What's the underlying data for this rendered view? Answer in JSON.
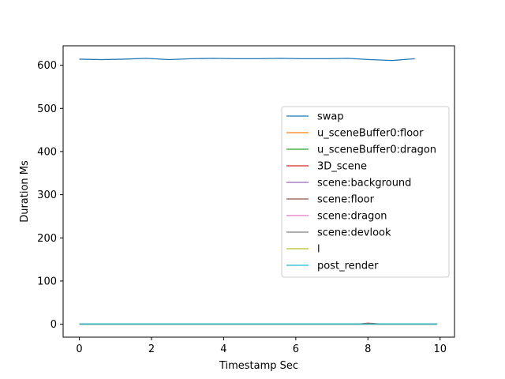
{
  "chart_data": {
    "type": "line",
    "title": "",
    "xlabel": "Timestamp Sec",
    "ylabel": "Duration Ms",
    "xlim": [
      -0.45,
      10.4
    ],
    "ylim": [
      -30,
      645
    ],
    "xticks": [
      0,
      2,
      4,
      6,
      8,
      10
    ],
    "yticks": [
      0,
      100,
      200,
      300,
      400,
      500,
      600
    ],
    "grid": false,
    "legend_position": "center-right",
    "series": [
      {
        "name": "swap",
        "color": "#1f77b4",
        "x": [
          0.0,
          0.62,
          1.24,
          1.86,
          2.48,
          3.1,
          3.72,
          4.34,
          4.96,
          5.58,
          6.2,
          6.82,
          7.44,
          8.06,
          8.68,
          9.3
        ],
        "y": [
          614,
          613,
          614,
          616,
          613,
          615,
          616,
          615,
          615,
          616,
          615,
          615,
          616,
          613,
          611,
          615
        ]
      },
      {
        "name": "u_sceneBuffer0:floor",
        "color": "#ff7f0e",
        "x": [
          0.0,
          1.0,
          2.0,
          3.0,
          4.0,
          5.0,
          6.0,
          7.0,
          7.8,
          8.0,
          8.3,
          9.0,
          9.92
        ],
        "y": [
          0.3,
          0.3,
          0.3,
          0.3,
          0.3,
          0.3,
          0.3,
          0.3,
          0.3,
          0.5,
          0.3,
          0.3,
          0.3
        ]
      },
      {
        "name": "u_sceneBuffer0:dragon",
        "color": "#2ca02c",
        "x": [
          0.0,
          1.0,
          2.0,
          3.0,
          4.0,
          5.0,
          6.0,
          7.0,
          8.0,
          9.0,
          9.92
        ],
        "y": [
          0.4,
          0.4,
          0.4,
          0.4,
          0.4,
          0.4,
          0.4,
          0.4,
          0.4,
          0.4,
          0.4
        ]
      },
      {
        "name": "3D_scene",
        "color": "#d62728",
        "x": [
          0.0,
          1.0,
          2.0,
          3.0,
          4.0,
          5.0,
          6.0,
          7.0,
          7.8,
          8.0,
          8.3,
          9.0,
          9.92
        ],
        "y": [
          0.9,
          0.9,
          0.9,
          0.9,
          0.9,
          0.9,
          0.9,
          0.9,
          0.9,
          2.5,
          0.9,
          0.9,
          0.9
        ]
      },
      {
        "name": "scene:background",
        "color": "#9467bd",
        "x": [
          0.0,
          1.0,
          2.0,
          3.0,
          4.0,
          5.0,
          6.0,
          7.0,
          8.0,
          9.0,
          9.92
        ],
        "y": [
          0.1,
          0.1,
          0.1,
          0.1,
          0.1,
          0.1,
          0.1,
          0.1,
          0.1,
          0.1,
          0.1
        ]
      },
      {
        "name": "scene:floor",
        "color": "#8c564b",
        "x": [
          0.0,
          1.0,
          2.0,
          3.0,
          4.0,
          5.0,
          6.0,
          7.0,
          7.8,
          8.0,
          8.3,
          9.0,
          9.92
        ],
        "y": [
          0.3,
          0.3,
          0.3,
          0.3,
          0.3,
          0.3,
          0.3,
          0.3,
          0.3,
          1.8,
          0.3,
          0.3,
          0.3
        ]
      },
      {
        "name": "scene:dragon",
        "color": "#e377c2",
        "x": [
          0.0,
          1.0,
          2.0,
          3.0,
          4.0,
          5.0,
          6.0,
          7.0,
          8.0,
          9.0,
          9.92
        ],
        "y": [
          0.4,
          0.4,
          0.4,
          0.4,
          0.4,
          0.4,
          0.4,
          0.4,
          0.4,
          0.4,
          0.4
        ]
      },
      {
        "name": "scene:devlook",
        "color": "#7f7f7f",
        "x": [
          0.0,
          1.0,
          2.0,
          3.0,
          4.0,
          5.0,
          6.0,
          7.0,
          8.0,
          9.0,
          9.92
        ],
        "y": [
          0.1,
          0.1,
          0.1,
          0.1,
          0.1,
          0.1,
          0.1,
          0.1,
          0.1,
          0.1,
          0.1
        ]
      },
      {
        "name": "l",
        "color": "#bcbd22",
        "x": [
          0.0,
          1.0,
          2.0,
          3.0,
          4.0,
          5.0,
          6.0,
          7.0,
          8.0,
          9.0,
          9.92
        ],
        "y": [
          0.2,
          0.2,
          0.2,
          0.2,
          0.2,
          0.2,
          0.2,
          0.2,
          0.2,
          0.2,
          0.2
        ]
      },
      {
        "name": "post_render",
        "color": "#17becf",
        "x": [
          0.0,
          1.0,
          2.0,
          3.0,
          4.0,
          5.0,
          6.0,
          7.0,
          8.0,
          9.0,
          9.92
        ],
        "y": [
          0.5,
          0.5,
          0.5,
          0.5,
          0.5,
          0.5,
          0.5,
          0.5,
          0.5,
          0.5,
          0.5
        ]
      }
    ]
  }
}
